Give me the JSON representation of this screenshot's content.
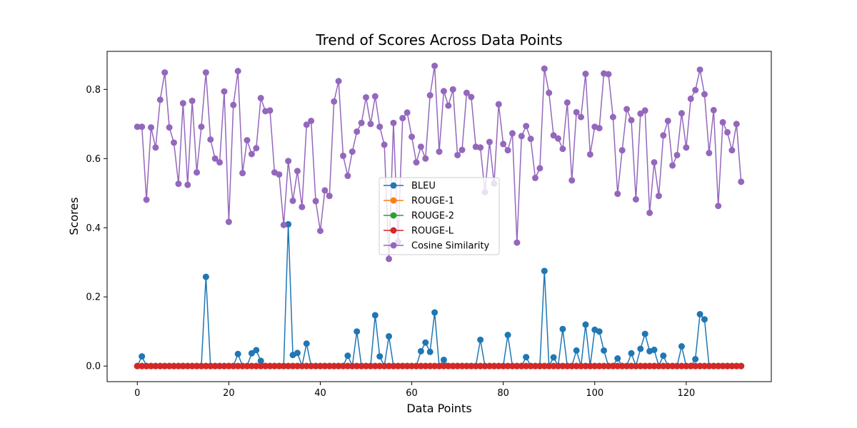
{
  "chart_data": {
    "type": "line",
    "title": "Trend of Scores Across Data Points",
    "xlabel": "Data Points",
    "ylabel": "Scores",
    "xlim": [
      -6.6,
      138.6
    ],
    "ylim": [
      -0.045,
      0.91
    ],
    "xticks": [
      0,
      20,
      40,
      60,
      80,
      100,
      120
    ],
    "xtick_labels": [
      "0",
      "20",
      "40",
      "60",
      "80",
      "100",
      "120"
    ],
    "yticks": [
      0.0,
      0.2,
      0.4,
      0.6,
      0.8
    ],
    "ytick_labels": [
      "0.0",
      "0.2",
      "0.4",
      "0.6",
      "0.8"
    ],
    "legend_position": "center",
    "grid": false,
    "series": [
      {
        "name": "BLEU",
        "color": "#1f77b4",
        "values": [
          0,
          0.028,
          0,
          0,
          0,
          0,
          0,
          0,
          0,
          0,
          0,
          0,
          0,
          0,
          0,
          0.258,
          0,
          0,
          0,
          0,
          0,
          0,
          0.035,
          0,
          0,
          0.037,
          0.046,
          0.015,
          0,
          0,
          0,
          0,
          0,
          0.41,
          0.032,
          0.038,
          0,
          0.065,
          0,
          0,
          0,
          0,
          0,
          0,
          0,
          0,
          0.03,
          0,
          0.1,
          0,
          0,
          0,
          0.147,
          0.028,
          0,
          0.086,
          0,
          0,
          0,
          0,
          0,
          0,
          0.043,
          0.068,
          0.041,
          0.155,
          0,
          0.018,
          0,
          0,
          0,
          0,
          0,
          0,
          0,
          0.076,
          0,
          0,
          0,
          0,
          0,
          0.09,
          0,
          0,
          0,
          0.026,
          0,
          0,
          0,
          0.275,
          0,
          0.025,
          0,
          0.107,
          0,
          0,
          0.045,
          0,
          0.12,
          0,
          0.105,
          0.1,
          0.045,
          0,
          0,
          0.022,
          0,
          0,
          0.037,
          0,
          0.05,
          0.093,
          0.043,
          0.047,
          0,
          0.03,
          0,
          0,
          0,
          0.057,
          0,
          0,
          0.02,
          0.15,
          0.135,
          0,
          0,
          0,
          0,
          0,
          0,
          0,
          0
        ]
      },
      {
        "name": "ROUGE-1",
        "color": "#ff7f0e",
        "values": [
          0,
          0,
          0,
          0,
          0,
          0,
          0,
          0,
          0,
          0,
          0,
          0,
          0,
          0,
          0,
          0,
          0,
          0,
          0,
          0,
          0,
          0,
          0,
          0,
          0,
          0,
          0,
          0,
          0,
          0,
          0,
          0,
          0,
          0,
          0,
          0,
          0,
          0,
          0,
          0,
          0,
          0,
          0,
          0,
          0,
          0,
          0,
          0,
          0,
          0,
          0,
          0,
          0,
          0,
          0,
          0,
          0,
          0,
          0,
          0,
          0,
          0,
          0,
          0,
          0,
          0,
          0,
          0,
          0,
          0,
          0,
          0,
          0,
          0,
          0,
          0,
          0,
          0,
          0,
          0,
          0,
          0,
          0,
          0,
          0,
          0,
          0,
          0,
          0,
          0,
          0,
          0,
          0,
          0,
          0,
          0,
          0,
          0,
          0,
          0,
          0,
          0,
          0,
          0,
          0,
          0,
          0,
          0,
          0,
          0,
          0,
          0,
          0,
          0,
          0,
          0,
          0,
          0,
          0,
          0,
          0,
          0,
          0,
          0,
          0,
          0,
          0,
          0,
          0,
          0,
          0,
          0,
          0
        ]
      },
      {
        "name": "ROUGE-2",
        "color": "#2ca02c",
        "values": [
          0,
          0,
          0,
          0,
          0,
          0,
          0,
          0,
          0,
          0,
          0,
          0,
          0,
          0,
          0,
          0,
          0,
          0,
          0,
          0,
          0,
          0,
          0,
          0,
          0,
          0,
          0,
          0,
          0,
          0,
          0,
          0,
          0,
          0,
          0,
          0,
          0,
          0,
          0,
          0,
          0,
          0,
          0,
          0,
          0,
          0,
          0,
          0,
          0,
          0,
          0,
          0,
          0,
          0,
          0,
          0,
          0,
          0,
          0,
          0,
          0,
          0,
          0,
          0,
          0,
          0,
          0,
          0,
          0,
          0,
          0,
          0,
          0,
          0,
          0,
          0,
          0,
          0,
          0,
          0,
          0,
          0,
          0,
          0,
          0,
          0,
          0,
          0,
          0,
          0,
          0,
          0,
          0,
          0,
          0,
          0,
          0,
          0,
          0,
          0,
          0,
          0,
          0,
          0,
          0,
          0,
          0,
          0,
          0,
          0,
          0,
          0,
          0,
          0,
          0,
          0,
          0,
          0,
          0,
          0,
          0,
          0,
          0,
          0,
          0,
          0,
          0,
          0,
          0,
          0,
          0,
          0,
          0
        ]
      },
      {
        "name": "ROUGE-L",
        "color": "#d62728",
        "values": [
          0,
          0,
          0,
          0,
          0,
          0,
          0,
          0,
          0,
          0,
          0,
          0,
          0,
          0,
          0,
          0,
          0,
          0,
          0,
          0,
          0,
          0,
          0,
          0,
          0,
          0,
          0,
          0,
          0,
          0,
          0,
          0,
          0,
          0,
          0,
          0,
          0,
          0,
          0,
          0,
          0,
          0,
          0,
          0,
          0,
          0,
          0,
          0,
          0,
          0,
          0,
          0,
          0,
          0,
          0,
          0,
          0,
          0,
          0,
          0,
          0,
          0,
          0,
          0,
          0,
          0,
          0,
          0,
          0,
          0,
          0,
          0,
          0,
          0,
          0,
          0,
          0,
          0,
          0,
          0,
          0,
          0,
          0,
          0,
          0,
          0,
          0,
          0,
          0,
          0,
          0,
          0,
          0,
          0,
          0,
          0,
          0,
          0,
          0,
          0,
          0,
          0,
          0,
          0,
          0,
          0,
          0,
          0,
          0,
          0,
          0,
          0,
          0,
          0,
          0,
          0,
          0,
          0,
          0,
          0,
          0,
          0,
          0,
          0,
          0,
          0,
          0,
          0,
          0,
          0,
          0,
          0,
          0
        ]
      },
      {
        "name": "Cosine Similarity",
        "color": "#9467bd",
        "values": [
          0.692,
          0.692,
          0.481,
          0.69,
          0.632,
          0.77,
          0.849,
          0.69,
          0.646,
          0.527,
          0.76,
          0.524,
          0.767,
          0.56,
          0.692,
          0.849,
          0.655,
          0.6,
          0.589,
          0.794,
          0.417,
          0.755,
          0.853,
          0.558,
          0.653,
          0.613,
          0.63,
          0.775,
          0.737,
          0.739,
          0.56,
          0.554,
          0.408,
          0.593,
          0.478,
          0.564,
          0.46,
          0.698,
          0.709,
          0.477,
          0.391,
          0.508,
          0.492,
          0.765,
          0.824,
          0.608,
          0.55,
          0.62,
          0.678,
          0.703,
          0.777,
          0.7,
          0.78,
          0.692,
          0.64,
          0.31,
          0.703,
          0.36,
          0.717,
          0.733,
          0.663,
          0.589,
          0.634,
          0.6,
          0.783,
          0.868,
          0.62,
          0.795,
          0.753,
          0.8,
          0.61,
          0.625,
          0.79,
          0.778,
          0.634,
          0.632,
          0.503,
          0.648,
          0.528,
          0.757,
          0.642,
          0.624,
          0.673,
          0.357,
          0.665,
          0.694,
          0.657,
          0.544,
          0.572,
          0.86,
          0.79,
          0.667,
          0.658,
          0.628,
          0.762,
          0.537,
          0.734,
          0.72,
          0.845,
          0.612,
          0.692,
          0.688,
          0.846,
          0.844,
          0.72,
          0.498,
          0.624,
          0.743,
          0.711,
          0.482,
          0.73,
          0.739,
          0.443,
          0.589,
          0.492,
          0.667,
          0.709,
          0.58,
          0.61,
          0.731,
          0.632,
          0.773,
          0.798,
          0.857,
          0.786,
          0.616,
          0.74,
          0.463,
          0.705,
          0.676,
          0.624,
          0.7,
          0.533
        ]
      }
    ]
  }
}
